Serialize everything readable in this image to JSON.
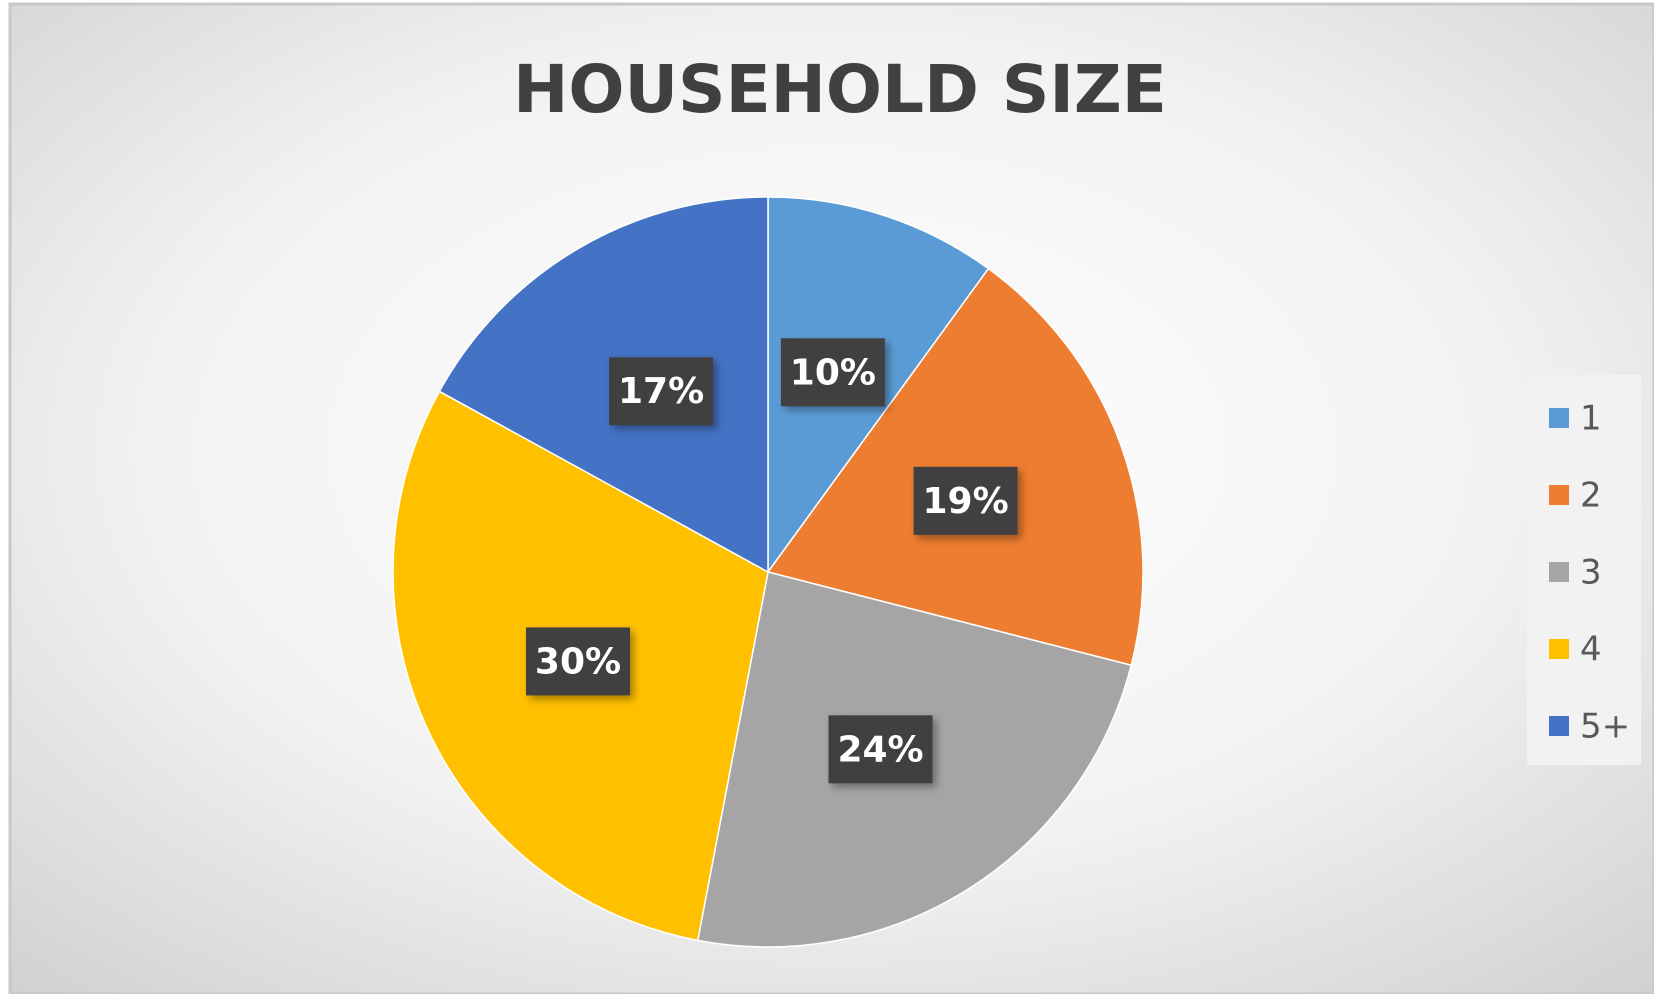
{
  "chart_data": {
    "type": "pie",
    "title": "HOUSEHOLD SIZE",
    "categories": [
      "1",
      "2",
      "3",
      "4",
      "5+"
    ],
    "values": [
      10,
      19,
      24,
      30,
      17
    ],
    "value_labels": [
      "10%",
      "19%",
      "24%",
      "30%",
      "17%"
    ],
    "colors": [
      "#5b9bd5",
      "#ed7d31",
      "#a5a5a5",
      "#ffc000",
      "#4472c4"
    ],
    "legend": "right"
  }
}
